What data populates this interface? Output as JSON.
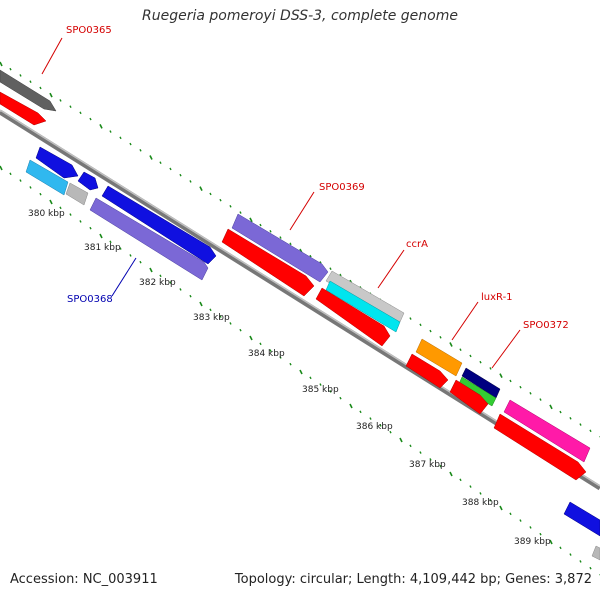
{
  "title": "Ruegeria pomeroyi DSS-3, complete genome",
  "footer": {
    "accession": "Accession: NC_003911",
    "summary": "Topology: circular; Length: 4,109,442 bp; Genes: 3,872"
  },
  "colors": {
    "gene_label_red": "#d40000",
    "gene_label_blue": "#0000b0",
    "ticks": "#1a8a1a",
    "backbone": "#888888",
    "cds_red": "#ff0000",
    "blue": "#1010e0",
    "light_blue": "#30b8ef",
    "grey": "#b8b8b8",
    "dark_grey": "#606060",
    "purple": "#7b68d6",
    "cyan": "#00e5ee",
    "orange": "#ff9900",
    "navy": "#000080",
    "green": "#33cc33",
    "pink": "#ff1aa8"
  },
  "scale_labels": [
    "380 kbp",
    "381 kbp",
    "382 kbp",
    "383 kbp",
    "384 kbp",
    "385 kbp",
    "386 kbp",
    "387 kbp",
    "388 kbp",
    "389 kbp"
  ],
  "gene_labels": [
    {
      "text": "SPO0365",
      "color": "red"
    },
    {
      "text": "SPO0368",
      "color": "blue"
    },
    {
      "text": "SPO0369",
      "color": "red"
    },
    {
      "text": "ccrA",
      "color": "red"
    },
    {
      "text": "luxR-1",
      "color": "red"
    },
    {
      "text": "SPO0372",
      "color": "red"
    }
  ]
}
